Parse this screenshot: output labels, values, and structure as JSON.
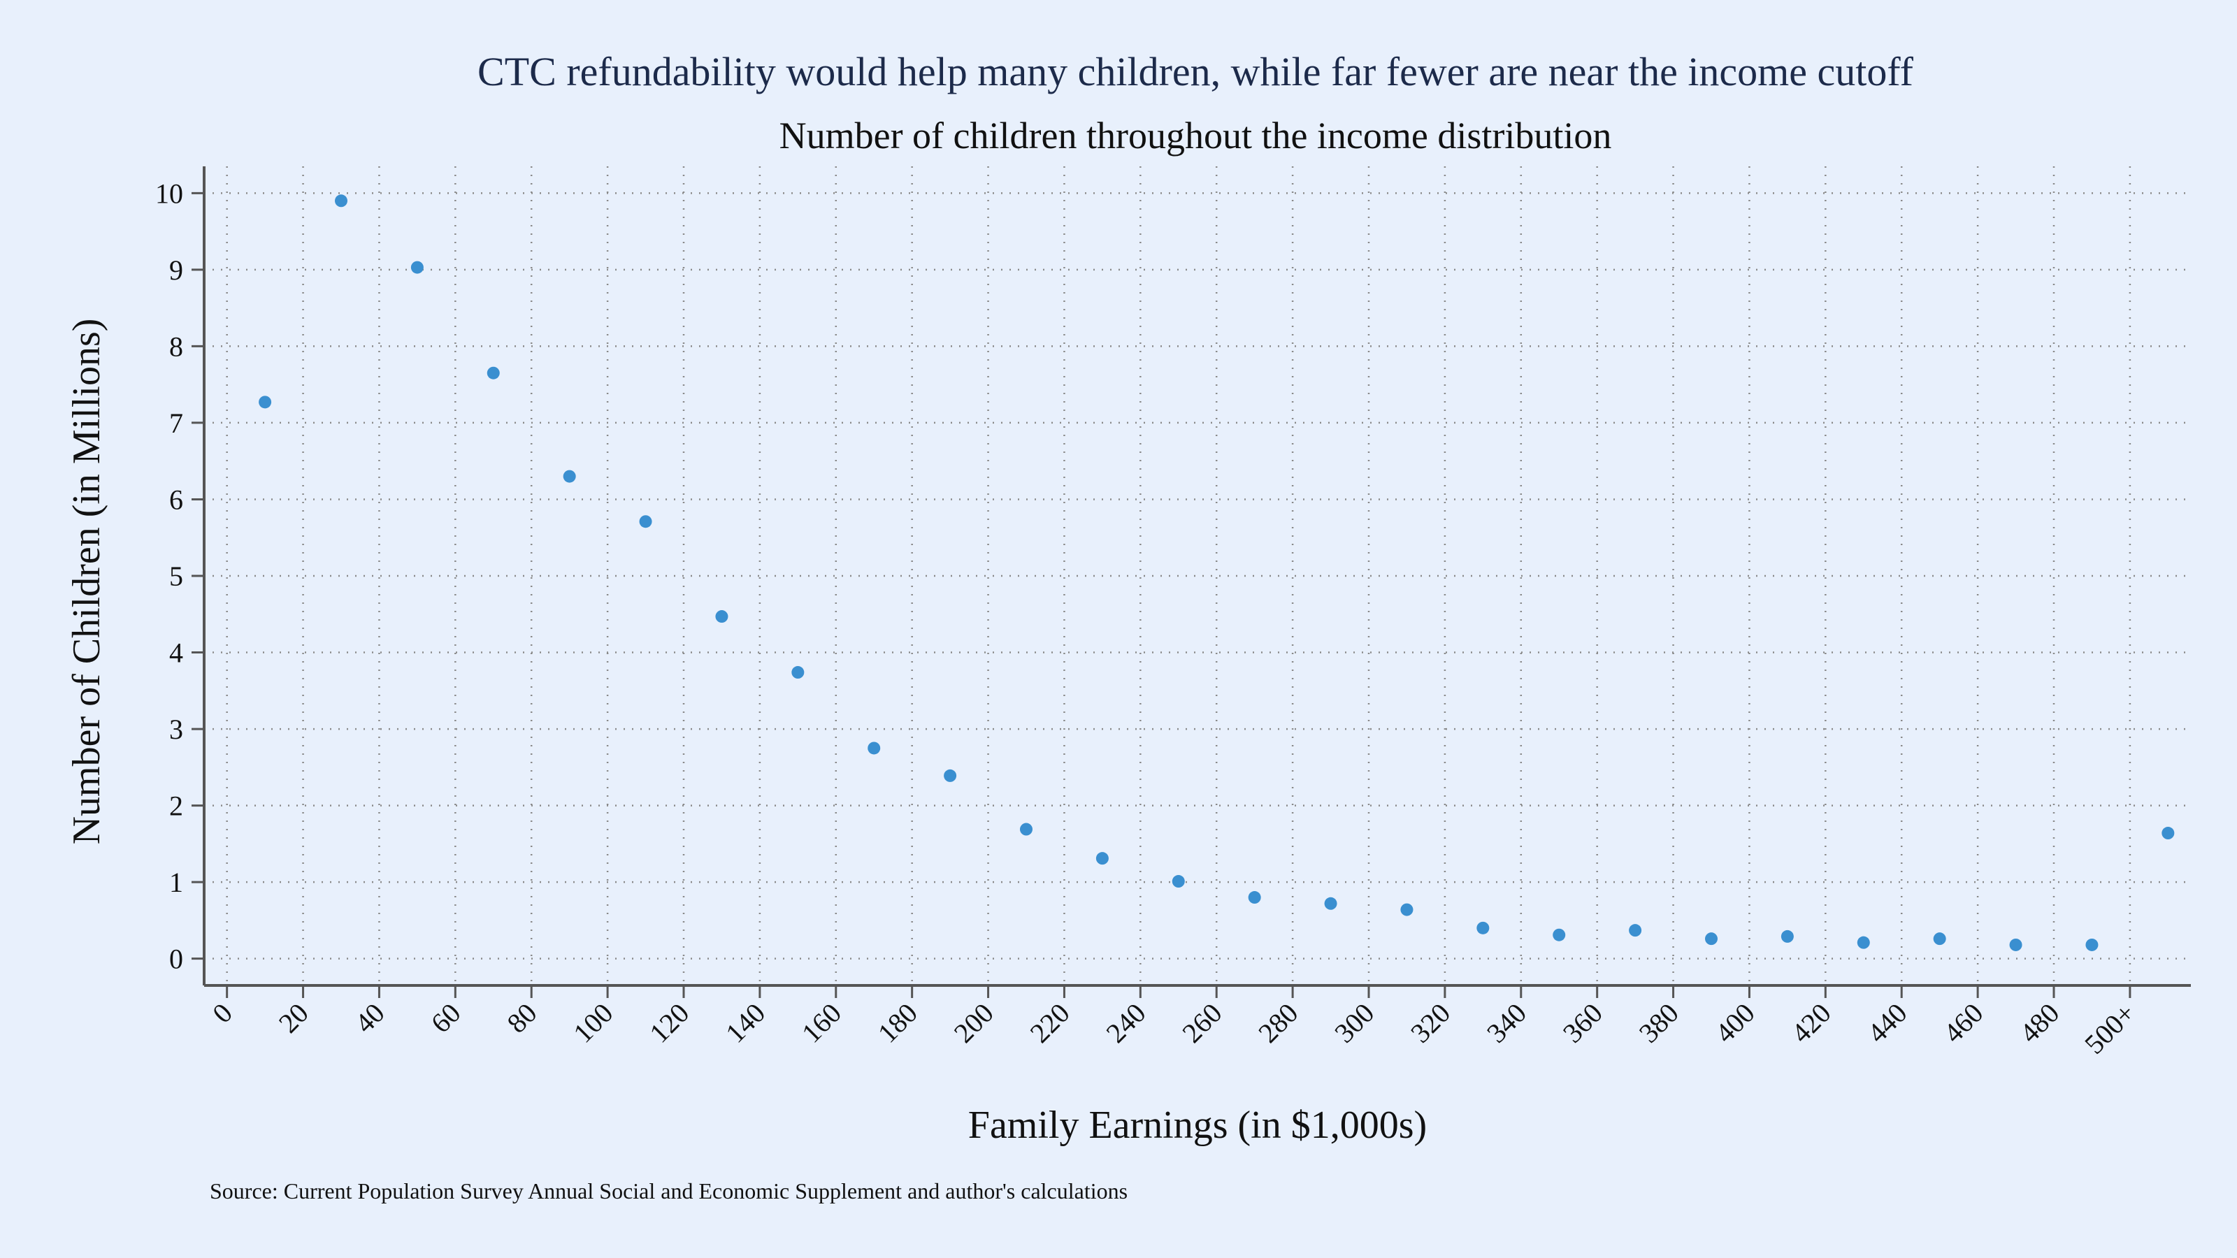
{
  "chart_data": {
    "type": "scatter",
    "title": "CTC refundability would help many children, while far fewer are near the income cutoff",
    "subtitle": "Number of children throughout the income distribution",
    "xlabel": "Family Earnings (in $1,000s)",
    "ylabel": "Number of Children (in Millions)",
    "source": "Source: Current Population Survey Annual Social and Economic Supplement and author's calculations",
    "xlim": [
      -6,
      516
    ],
    "ylim": [
      -0.35,
      10.35
    ],
    "x_ticks": [
      0,
      20,
      40,
      60,
      80,
      100,
      120,
      140,
      160,
      180,
      200,
      220,
      240,
      260,
      280,
      300,
      320,
      340,
      360,
      380,
      400,
      420,
      440,
      460,
      480,
      500
    ],
    "x_tick_labels": [
      "0",
      "20",
      "40",
      "60",
      "80",
      "100",
      "120",
      "140",
      "160",
      "180",
      "200",
      "220",
      "240",
      "260",
      "280",
      "300",
      "320",
      "340",
      "360",
      "380",
      "400",
      "420",
      "440",
      "460",
      "480",
      "500+"
    ],
    "y_ticks": [
      0,
      1,
      2,
      3,
      4,
      5,
      6,
      7,
      8,
      9,
      10
    ],
    "y_tick_labels": [
      "0",
      "1",
      "2",
      "3",
      "4",
      "5",
      "6",
      "7",
      "8",
      "9",
      "10"
    ],
    "grid": true,
    "series": [
      {
        "name": "Children",
        "color": "#3a8fd0",
        "x": [
          10,
          30,
          50,
          70,
          90,
          110,
          130,
          150,
          170,
          190,
          210,
          230,
          250,
          270,
          290,
          310,
          330,
          350,
          370,
          390,
          410,
          430,
          450,
          470,
          490,
          510
        ],
        "y": [
          7.27,
          9.9,
          9.03,
          7.65,
          6.3,
          5.71,
          4.47,
          3.74,
          2.75,
          2.39,
          1.69,
          1.31,
          1.01,
          0.8,
          0.72,
          0.64,
          0.4,
          0.31,
          0.37,
          0.26,
          0.29,
          0.21,
          0.26,
          0.18,
          0.18,
          1.64
        ]
      }
    ]
  }
}
